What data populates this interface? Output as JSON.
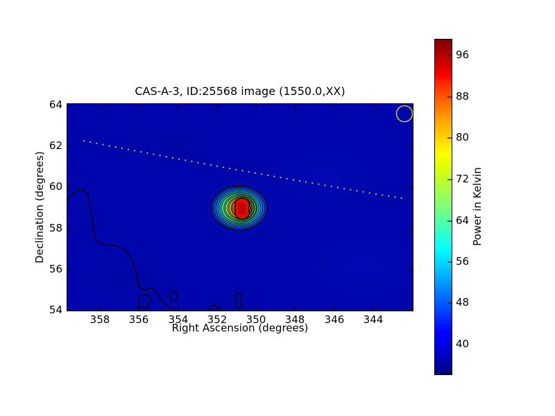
{
  "title": "CAS-A-3, ID:25568 image (1550.0,XX)",
  "axes": {
    "xlabel": "Right Ascension (degrees)",
    "ylabel": "Declination (degrees)",
    "x_tick_labels": [
      "358",
      "356",
      "354",
      "352",
      "350",
      "348",
      "346",
      "344"
    ],
    "y_tick_labels": [
      "64",
      "62",
      "60",
      "58",
      "56",
      "54"
    ]
  },
  "colorbar": {
    "label": "Power in Kelvin",
    "tick_labels": [
      "96",
      "88",
      "80",
      "72",
      "64",
      "56",
      "48",
      "40"
    ]
  },
  "chart_data": {
    "type": "heatmap",
    "title": "CAS-A-3, ID:25568 image (1550.0,XX)",
    "xlabel": "Right Ascension (degrees)",
    "ylabel": "Declination (degrees)",
    "x_ticks": [
      358,
      356,
      354,
      352,
      350,
      348,
      346,
      344
    ],
    "x_axis_direction": "decreasing-to-right",
    "x_range_deg": [
      359.7,
      342.0
    ],
    "y_ticks": [
      64,
      62,
      60,
      58,
      56,
      54
    ],
    "y_range_deg": [
      54.0,
      64.1
    ],
    "grid": false,
    "colormap": "jet",
    "colorbar": {
      "label": "Power in Kelvin",
      "ticks": [
        96,
        88,
        80,
        72,
        64,
        56,
        48,
        40
      ],
      "value_range_K": [
        34.5,
        99.5
      ],
      "position": "right"
    },
    "background_level_K": 36,
    "features": {
      "main_source": {
        "name": "CAS-A-3",
        "ra_deg": 350.9,
        "dec_deg": 59.0,
        "extent_ra_deg": [
          352.5,
          349.4
        ],
        "extent_dec_deg": [
          57.9,
          60.1
        ],
        "peak_K": 99,
        "contour_ring_count": 13,
        "contour_levels_K": [
          40,
          44,
          48,
          52,
          56,
          60,
          64,
          68,
          72,
          76,
          80,
          84,
          88,
          92,
          96
        ],
        "core_shape": "vertically-elongated peanut, red"
      },
      "dotted_track": {
        "style": "dotted",
        "color": "#c3c33a",
        "from": {
          "ra_deg": 358.9,
          "dec_deg": 62.3
        },
        "to": {
          "ra_deg": 342.3,
          "dec_deg": 59.4
        }
      },
      "circle_marker": {
        "style": "open circle",
        "color": "#c3c33a",
        "ra_deg": 342.4,
        "dec_deg": 63.6,
        "radius_deg": 0.42
      },
      "noise_contour": {
        "color": "#000000",
        "description": "single low-level contour entering west edge near Dec 59.2 meandering to south edge near RA 352.5; small closed contours near Dec 54.2 at RA 354.3, 353.5 and 351.2"
      }
    }
  },
  "colors": {
    "figure_background": "#ffffff",
    "sky_background": "#0106ac",
    "contour_line": "#000000",
    "source_core_red": "#dd1000",
    "annotation_yellow": "#c3c33a",
    "jet_stops": [
      "#000080",
      "#0000ff",
      "#00ffff",
      "#7cff78",
      "#ffff00",
      "#ff0000",
      "#7f0000"
    ]
  }
}
